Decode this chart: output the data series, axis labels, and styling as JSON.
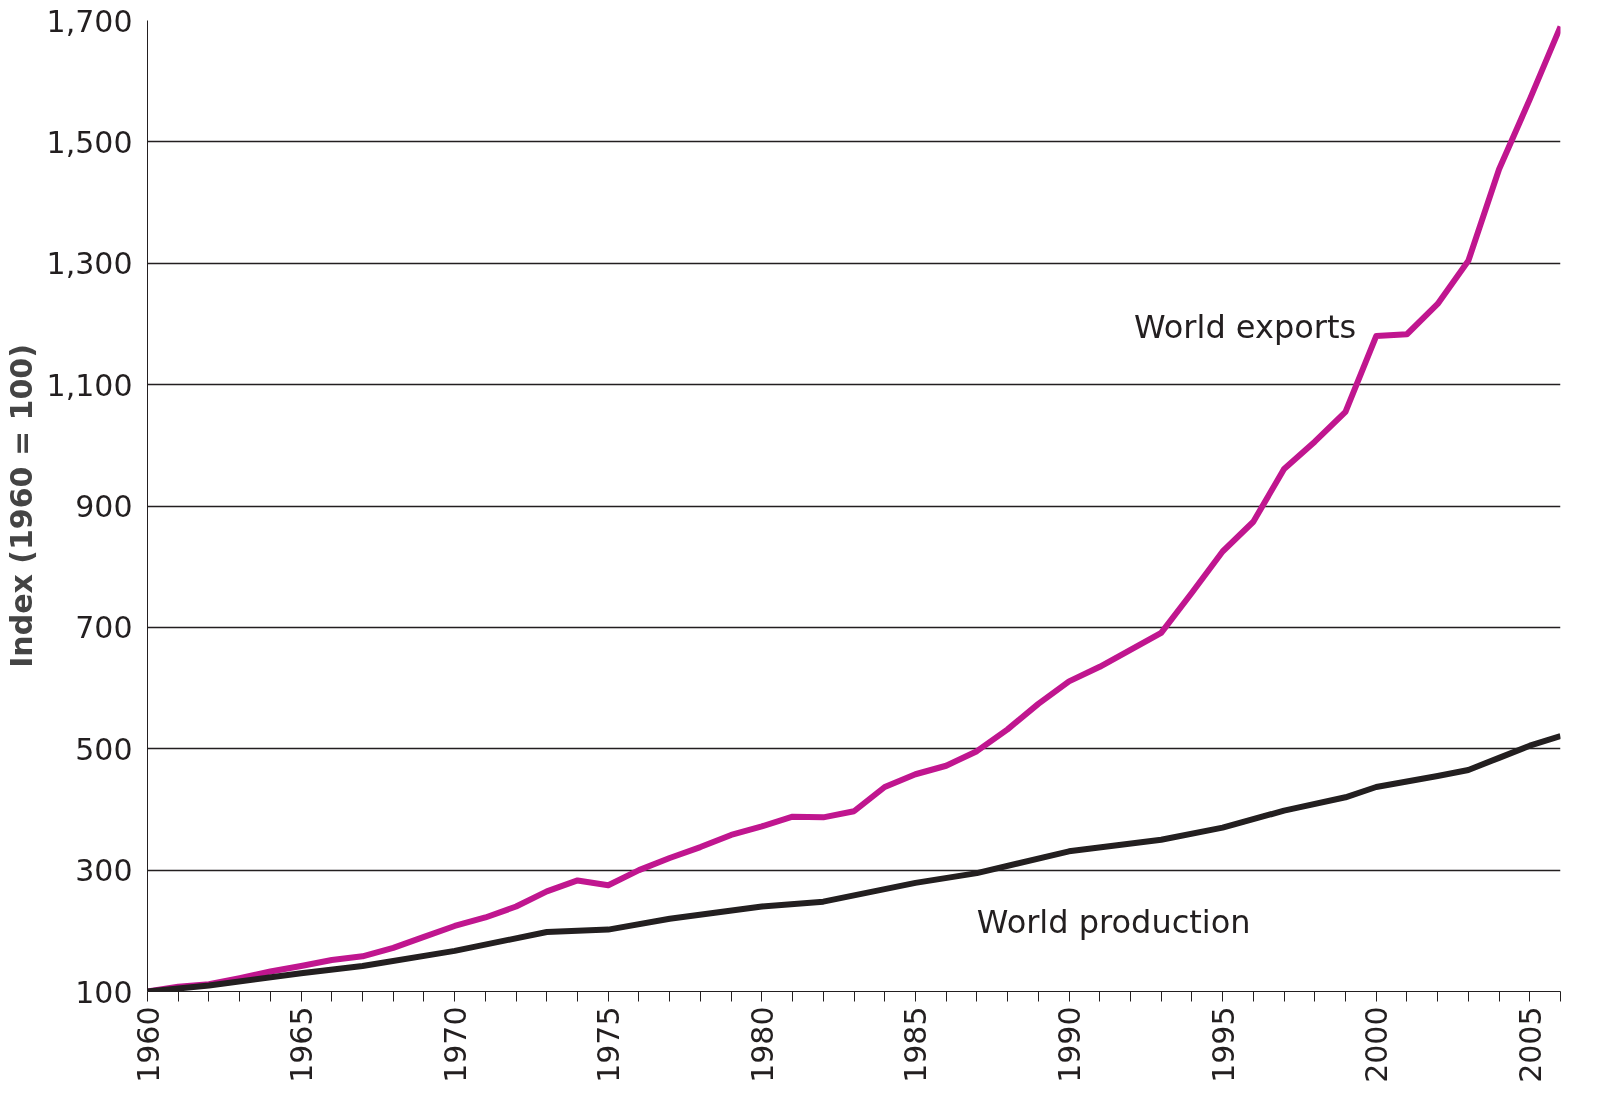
{
  "chart_data": {
    "type": "line",
    "ylabel": "Index (1960 = 100)",
    "xlim": [
      1960,
      2006
    ],
    "ylim": [
      100,
      1700
    ],
    "xticks": [
      1960,
      {
        "value": 1961,
        "label": null
      },
      {
        "value": 1962,
        "label": null
      },
      {
        "value": 1963,
        "label": null
      },
      {
        "value": 1964,
        "label": null
      },
      1965,
      {
        "value": 1966,
        "label": null
      },
      {
        "value": 1967,
        "label": null
      },
      {
        "value": 1968,
        "label": null
      },
      {
        "value": 1969,
        "label": null
      },
      1970,
      {
        "value": 1971,
        "label": null
      },
      {
        "value": 1972,
        "label": null
      },
      {
        "value": 1973,
        "label": null
      },
      {
        "value": 1974,
        "label": null
      },
      1975,
      {
        "value": 1976,
        "label": null
      },
      {
        "value": 1977,
        "label": null
      },
      {
        "value": 1978,
        "label": null
      },
      {
        "value": 1979,
        "label": null
      },
      1980,
      {
        "value": 1981,
        "label": null
      },
      {
        "value": 1982,
        "label": null
      },
      {
        "value": 1983,
        "label": null
      },
      {
        "value": 1984,
        "label": null
      },
      1985,
      {
        "value": 1986,
        "label": null
      },
      {
        "value": 1987,
        "label": null
      },
      {
        "value": 1988,
        "label": null
      },
      {
        "value": 1989,
        "label": null
      },
      1990,
      {
        "value": 1991,
        "label": null
      },
      {
        "value": 1992,
        "label": null
      },
      {
        "value": 1993,
        "label": null
      },
      {
        "value": 1994,
        "label": null
      },
      1995,
      {
        "value": 1996,
        "label": null
      },
      {
        "value": 1997,
        "label": null
      },
      {
        "value": 1998,
        "label": null
      },
      {
        "value": 1999,
        "label": null
      },
      2000,
      {
        "value": 2001,
        "label": null
      },
      {
        "value": 2002,
        "label": null
      },
      {
        "value": 2003,
        "label": null
      },
      {
        "value": 2004,
        "label": null
      },
      2005,
      {
        "value": 2006,
        "label": null
      }
    ],
    "yticks": [
      100,
      300,
      500,
      700,
      900,
      {
        "value": 1100,
        "label": "1,100"
      },
      {
        "value": 1300,
        "label": "1,300"
      },
      {
        "value": 1500,
        "label": "1,500"
      },
      {
        "value": 1700,
        "label": "1,700"
      }
    ],
    "grid": "y",
    "legend": false,
    "marker": "none",
    "line_style": "solid",
    "series": [
      {
        "name": "World exports",
        "color": "#c0168f",
        "x": [
          1960,
          1961,
          1962,
          1963,
          1964,
          1965,
          1966,
          1967,
          1968,
          1969,
          1970,
          1971,
          1972,
          1973,
          1974,
          1975,
          1976,
          1977,
          1978,
          1979,
          1980,
          1981,
          1982,
          1983,
          1984,
          1985,
          1986,
          1987,
          1988,
          1989,
          1990,
          1991,
          1992,
          1993,
          1994,
          1995,
          1996,
          1997,
          1998,
          1999,
          2000,
          2001,
          2002,
          2003,
          2004,
          2005,
          2006
        ],
        "values": [
          100,
          108,
          112,
          122,
          133,
          142,
          152,
          158,
          172,
          190,
          208,
          222,
          240,
          265,
          283,
          275,
          300,
          320,
          338,
          358,
          372,
          388,
          387,
          397,
          437,
          458,
          472,
          496,
          532,
          574,
          611,
          635,
          663,
          691,
          757,
          825,
          874,
          961,
          1006,
          1055,
          1180,
          1183,
          1233,
          1304,
          1455,
          1570,
          1690
        ]
      },
      {
        "name": "World production",
        "color": "#231f20",
        "x": [
          1960,
          1962,
          1965,
          1967,
          1970,
          1973,
          1975,
          1977,
          1980,
          1982,
          1985,
          1987,
          1990,
          1993,
          1995,
          1997,
          1999,
          2000,
          2002,
          2003,
          2004,
          2005,
          2006
        ],
        "values": [
          100,
          110,
          130,
          142,
          167,
          198,
          202,
          220,
          240,
          248,
          279,
          295,
          331,
          350,
          370,
          398,
          420,
          437,
          455,
          465,
          485,
          505,
          521
        ]
      }
    ]
  }
}
